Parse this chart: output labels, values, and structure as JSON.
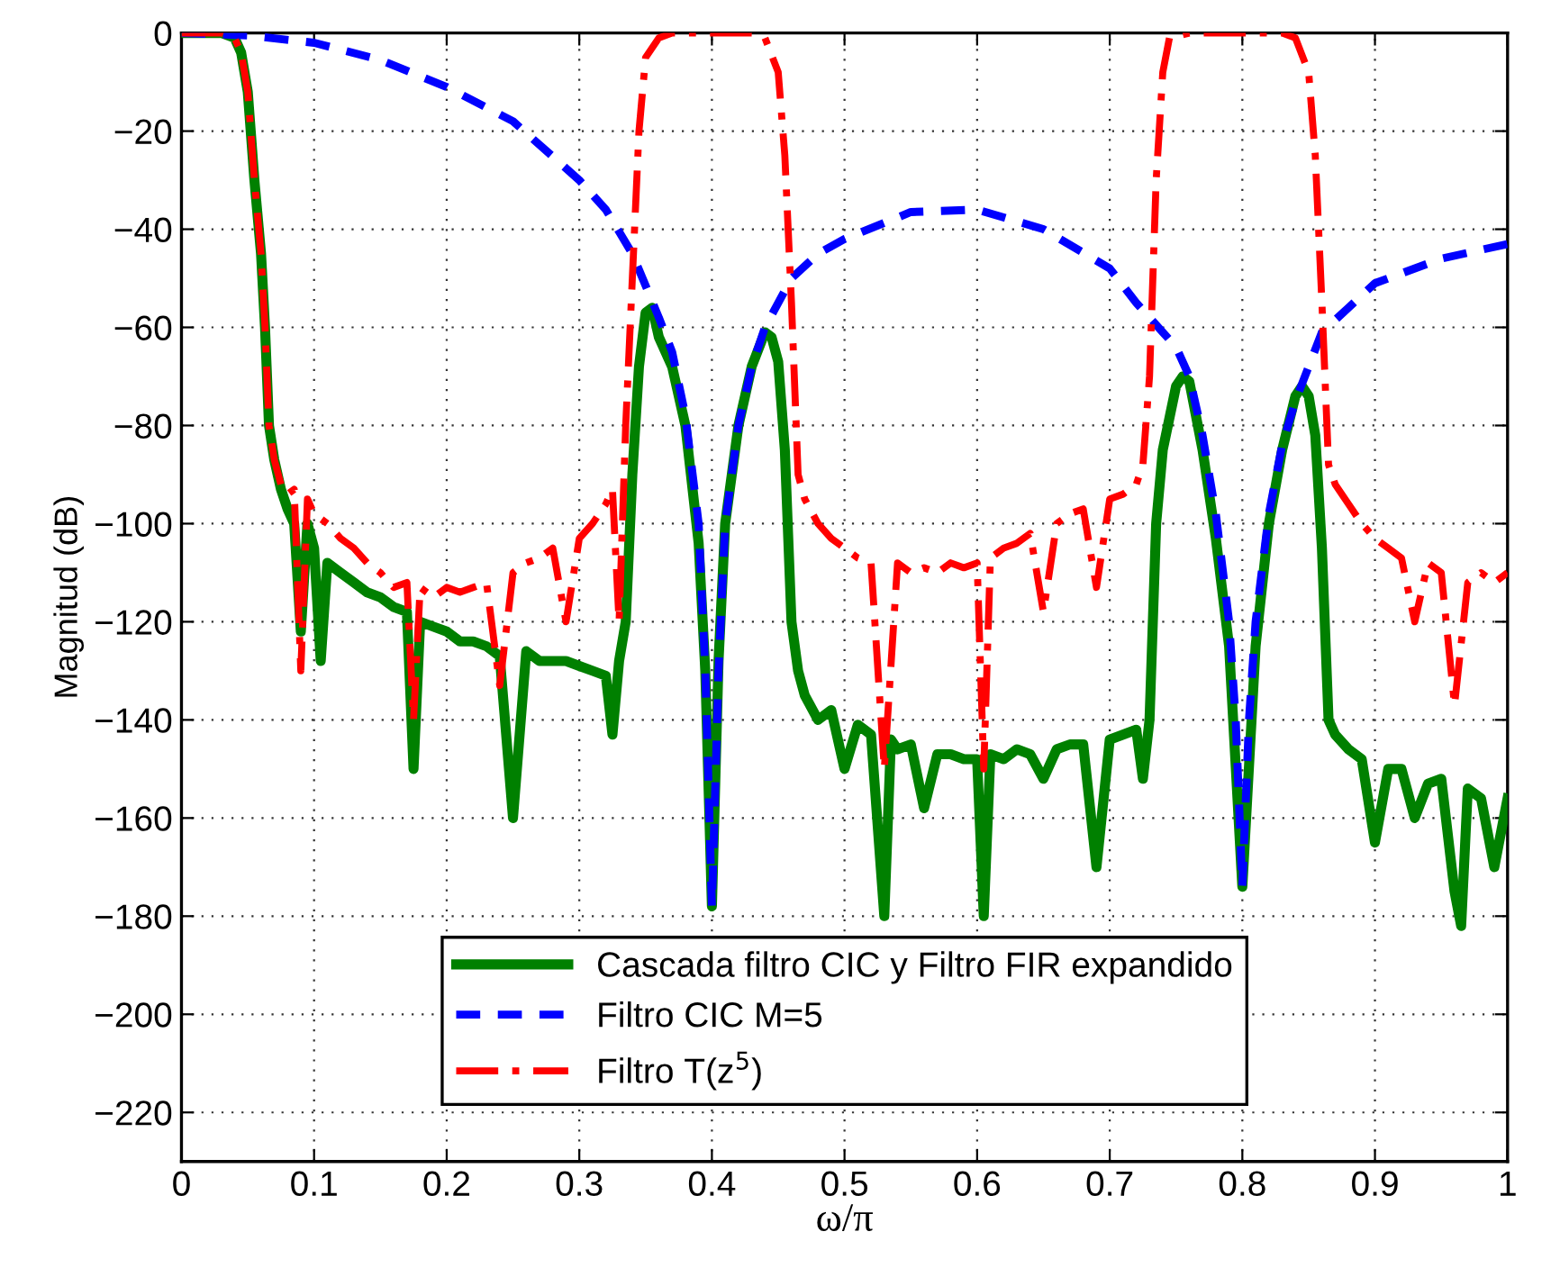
{
  "chart_data": {
    "type": "line",
    "xlabel": "ω/π",
    "ylabel": "Magnitud (dB)",
    "xlim": [
      0,
      1
    ],
    "ylim": [
      -230,
      0
    ],
    "xticks": [
      0,
      0.1,
      0.2,
      0.3,
      0.4,
      0.5,
      0.6,
      0.7,
      0.8,
      0.9,
      1
    ],
    "yticks": [
      -220,
      -200,
      -180,
      -160,
      -140,
      -120,
      -100,
      -80,
      -60,
      -40,
      -20,
      0
    ],
    "grid": true,
    "legend": "bottom",
    "marker": "none",
    "series": [
      {
        "name": "Cascada filtro CIC y Filtro FIR expandido",
        "color": "#008000",
        "line_style": "solid",
        "x": [
          0,
          0.03,
          0.04,
          0.045,
          0.05,
          0.055,
          0.06,
          0.063,
          0.066,
          0.07,
          0.075,
          0.08,
          0.085,
          0.09,
          0.095,
          0.1,
          0.105,
          0.11,
          0.12,
          0.13,
          0.14,
          0.15,
          0.16,
          0.17,
          0.175,
          0.18,
          0.19,
          0.2,
          0.21,
          0.22,
          0.23,
          0.24,
          0.25,
          0.26,
          0.27,
          0.28,
          0.29,
          0.3,
          0.31,
          0.32,
          0.325,
          0.33,
          0.335,
          0.34,
          0.345,
          0.35,
          0.355,
          0.36,
          0.37,
          0.38,
          0.39,
          0.395,
          0.4,
          0.405,
          0.41,
          0.42,
          0.43,
          0.44,
          0.445,
          0.45,
          0.455,
          0.46,
          0.465,
          0.47,
          0.48,
          0.49,
          0.5,
          0.51,
          0.52,
          0.53,
          0.535,
          0.54,
          0.55,
          0.56,
          0.57,
          0.58,
          0.59,
          0.6,
          0.605,
          0.61,
          0.62,
          0.63,
          0.64,
          0.65,
          0.66,
          0.67,
          0.68,
          0.69,
          0.7,
          0.71,
          0.72,
          0.725,
          0.73,
          0.735,
          0.74,
          0.75,
          0.755,
          0.76,
          0.77,
          0.78,
          0.79,
          0.8,
          0.81,
          0.82,
          0.83,
          0.84,
          0.845,
          0.85,
          0.855,
          0.86,
          0.865,
          0.87,
          0.88,
          0.89,
          0.9,
          0.91,
          0.92,
          0.93,
          0.94,
          0.95,
          0.96,
          0.965,
          0.97,
          0.98,
          0.99,
          1.0
        ],
        "values": [
          0,
          0,
          -1,
          -4,
          -12,
          -30,
          -45,
          -60,
          -80,
          -87,
          -93,
          -97,
          -100,
          -122,
          -100,
          -105,
          -128,
          -108,
          -110,
          -112,
          -114,
          -115,
          -117,
          -118,
          -150,
          -120,
          -121,
          -122,
          -124,
          -124,
          -125,
          -127,
          -160,
          -126,
          -128,
          -128,
          -128,
          -129,
          -130,
          -131,
          -143,
          -128,
          -120,
          -90,
          -68,
          -57,
          -56,
          -62,
          -68,
          -80,
          -104,
          -130,
          -178,
          -128,
          -100,
          -80,
          -68,
          -61,
          -62,
          -67,
          -85,
          -120,
          -130,
          -135,
          -140,
          -138,
          -150,
          -141,
          -143,
          -180,
          -144,
          -146,
          -145,
          -158,
          -147,
          -147,
          -148,
          -148,
          -180,
          -147,
          -148,
          -146,
          -147,
          -152,
          -146,
          -145,
          -145,
          -170,
          -144,
          -143,
          -142,
          -152,
          -140,
          -100,
          -85,
          -72,
          -70,
          -71,
          -85,
          -103,
          -125,
          -174,
          -125,
          -100,
          -85,
          -74,
          -72,
          -74,
          -82,
          -105,
          -140,
          -143,
          -146,
          -148,
          -165,
          -150,
          -150,
          -160,
          -153,
          -152,
          -175,
          -182,
          -154,
          -156,
          -170,
          -156
        ]
      },
      {
        "name": "Filtro CIC M=5",
        "color": "#0000ff",
        "line_style": "dashed",
        "x": [
          0,
          0.05,
          0.1,
          0.15,
          0.2,
          0.25,
          0.3,
          0.32,
          0.34,
          0.36,
          0.37,
          0.38,
          0.39,
          0.395,
          0.4,
          0.405,
          0.41,
          0.42,
          0.43,
          0.44,
          0.46,
          0.48,
          0.5,
          0.55,
          0.6,
          0.65,
          0.7,
          0.72,
          0.74,
          0.75,
          0.76,
          0.77,
          0.78,
          0.79,
          0.795,
          0.8,
          0.805,
          0.81,
          0.82,
          0.83,
          0.84,
          0.85,
          0.86,
          0.88,
          0.9,
          0.95,
          1.0
        ],
        "values": [
          0,
          -0.5,
          -2,
          -5.5,
          -11,
          -18,
          -30,
          -36,
          -45,
          -58,
          -65,
          -78,
          -100,
          -130,
          -178,
          -130,
          -100,
          -80,
          -68,
          -60,
          -50,
          -45,
          -42,
          -36.5,
          -36,
          -40,
          -48,
          -55,
          -61,
          -64,
          -70,
          -82,
          -98,
          -120,
          -140,
          -174,
          -140,
          -120,
          -98,
          -84,
          -75,
          -68,
          -61,
          -56,
          -51,
          -46,
          -43
        ]
      },
      {
        "name": "Filtro T(z$^{5}$)",
        "color": "#ff0000",
        "line_style": "dashdot",
        "x": [
          0,
          0.03,
          0.04,
          0.045,
          0.05,
          0.055,
          0.06,
          0.063,
          0.066,
          0.07,
          0.075,
          0.08,
          0.085,
          0.09,
          0.095,
          0.1,
          0.11,
          0.12,
          0.13,
          0.14,
          0.15,
          0.16,
          0.17,
          0.175,
          0.18,
          0.19,
          0.2,
          0.21,
          0.22,
          0.23,
          0.24,
          0.25,
          0.26,
          0.27,
          0.28,
          0.29,
          0.3,
          0.31,
          0.32,
          0.325,
          0.33,
          0.335,
          0.34,
          0.345,
          0.35,
          0.36,
          0.37,
          0.4,
          0.43,
          0.44,
          0.45,
          0.455,
          0.46,
          0.465,
          0.47,
          0.48,
          0.49,
          0.5,
          0.51,
          0.52,
          0.53,
          0.54,
          0.55,
          0.56,
          0.57,
          0.58,
          0.59,
          0.6,
          0.605,
          0.61,
          0.62,
          0.63,
          0.64,
          0.65,
          0.66,
          0.67,
          0.68,
          0.69,
          0.7,
          0.71,
          0.72,
          0.725,
          0.73,
          0.735,
          0.74,
          0.745,
          0.76,
          0.8,
          0.83,
          0.84,
          0.85,
          0.855,
          0.86,
          0.865,
          0.87,
          0.88,
          0.89,
          0.9,
          0.91,
          0.92,
          0.93,
          0.94,
          0.95,
          0.96,
          0.97,
          0.98,
          0.99,
          1.0
        ],
        "values": [
          0,
          0,
          -1,
          -4,
          -12,
          -30,
          -45,
          -60,
          -80,
          -87,
          -92,
          -94,
          -93,
          -130,
          -95,
          -98,
          -100,
          -103,
          -105,
          -108,
          -110,
          -113,
          -112,
          -140,
          -113,
          -115,
          -113,
          -114,
          -113,
          -112,
          -133,
          -110,
          -108,
          -107,
          -105,
          -120,
          -103,
          -100,
          -96,
          -93,
          -120,
          -80,
          -50,
          -20,
          -5,
          -1,
          0,
          0,
          0,
          -1,
          -8,
          -25,
          -55,
          -90,
          -95,
          -100,
          -103,
          -105,
          -107,
          -108,
          -150,
          -108,
          -110,
          -109,
          -110,
          -108,
          -109,
          -108,
          -150,
          -107,
          -105,
          -104,
          -102,
          -118,
          -100,
          -98,
          -97,
          -113,
          -95,
          -94,
          -92,
          -88,
          -70,
          -30,
          -8,
          -1,
          0,
          0,
          0,
          -1,
          -8,
          -25,
          -55,
          -88,
          -92,
          -96,
          -100,
          -103,
          -105,
          -107,
          -120,
          -108,
          -110,
          -137,
          -112,
          -110,
          -112,
          -110
        ]
      }
    ]
  }
}
